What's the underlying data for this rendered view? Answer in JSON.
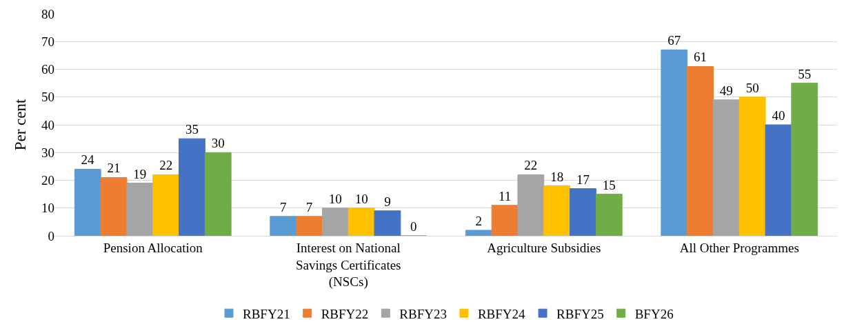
{
  "chart_data": {
    "type": "bar",
    "ylabel": "Per cent",
    "categories": [
      "Pension Allocation",
      "Interest on National Savings Certificates (NSCs)",
      "Agriculture Subsidies",
      "All Other Programmes"
    ],
    "series": [
      {
        "name": "RBFY21",
        "color": "#5b9bd5",
        "values": [
          24,
          7,
          2,
          67
        ]
      },
      {
        "name": "RBFY22",
        "color": "#ed7d31",
        "values": [
          21,
          7,
          11,
          61
        ]
      },
      {
        "name": "RBFY23",
        "color": "#a5a5a5",
        "values": [
          19,
          10,
          22,
          49
        ]
      },
      {
        "name": "RBFY24",
        "color": "#ffc000",
        "values": [
          22,
          10,
          18,
          50
        ]
      },
      {
        "name": "RBFY25",
        "color": "#4472c4",
        "values": [
          35,
          9,
          17,
          40
        ]
      },
      {
        "name": "BFY26",
        "color": "#70ad47",
        "values": [
          30,
          0,
          15,
          55
        ]
      }
    ],
    "ylim": [
      0,
      80
    ],
    "yticks": [
      0,
      10,
      20,
      30,
      40,
      50,
      60,
      70,
      80
    ],
    "grid": "y",
    "legend": "bottom",
    "data_labels": true
  }
}
